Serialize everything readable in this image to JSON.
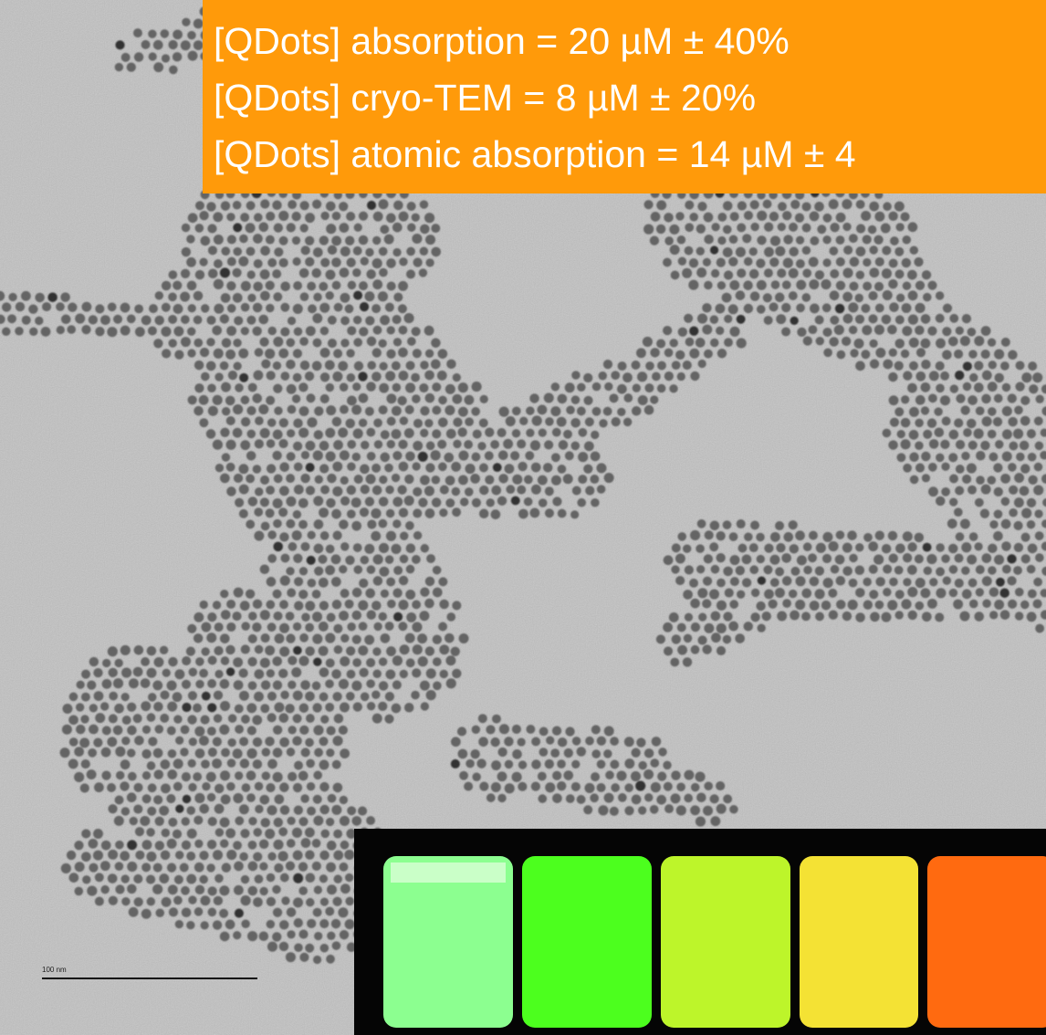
{
  "annotation": {
    "lines": [
      "[QDots] absorption = 20 µM ± 40%",
      "[QDots] cryo-TEM = 8 µM  ± 20%",
      "[QDots] atomic absorption = 14 µM ± 4"
    ]
  },
  "scale_bar": {
    "label": "100 nm"
  }
}
